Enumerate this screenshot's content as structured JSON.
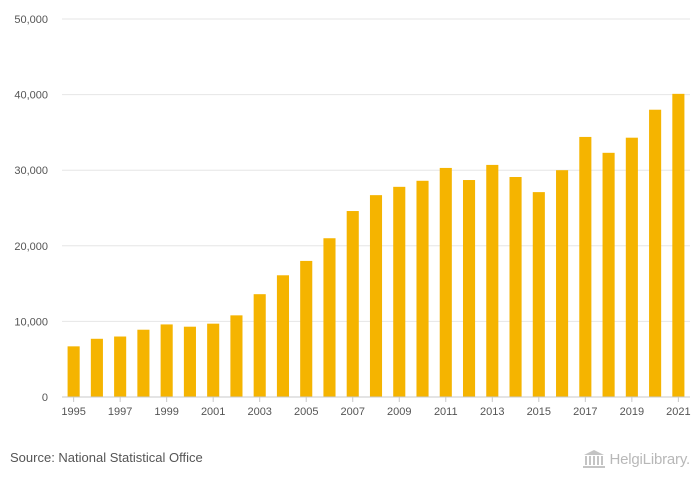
{
  "chart_data": {
    "type": "bar",
    "title": "",
    "xlabel": "",
    "ylabel": "",
    "ylim": [
      0,
      50000
    ],
    "yticks": [
      0,
      10000,
      20000,
      30000,
      40000,
      50000
    ],
    "ytick_labels": [
      "0",
      "10,000",
      "20,000",
      "30,000",
      "40,000",
      "50,000"
    ],
    "grid": true,
    "bar_color": "#F5B400",
    "categories": [
      "1995",
      "1996",
      "1997",
      "1998",
      "1999",
      "2000",
      "2001",
      "2002",
      "2003",
      "2004",
      "2005",
      "2006",
      "2007",
      "2008",
      "2009",
      "2010",
      "2011",
      "2012",
      "2013",
      "2014",
      "2015",
      "2016",
      "2017",
      "2018",
      "2019",
      "2020",
      "2021"
    ],
    "xtick_labels": [
      "1995",
      "",
      "1997",
      "",
      "1999",
      "",
      "2001",
      "",
      "2003",
      "",
      "2005",
      "",
      "2007",
      "",
      "2009",
      "",
      "2011",
      "",
      "2013",
      "",
      "2015",
      "",
      "2017",
      "",
      "2019",
      "",
      "2021"
    ],
    "values": [
      6700,
      7700,
      8000,
      8900,
      9600,
      9300,
      9700,
      10800,
      13600,
      16100,
      18000,
      21000,
      24600,
      26700,
      27800,
      28600,
      30300,
      28700,
      30700,
      29100,
      27100,
      30000,
      34400,
      32300,
      34300,
      38000,
      40100
    ]
  },
  "footer": {
    "source": "Source: National Statistical Office",
    "brand": "HelgiLibrary."
  },
  "colors": {
    "bar": "#F5B400",
    "grid": "#e6e6e6",
    "axis": "#c8c8c8"
  }
}
